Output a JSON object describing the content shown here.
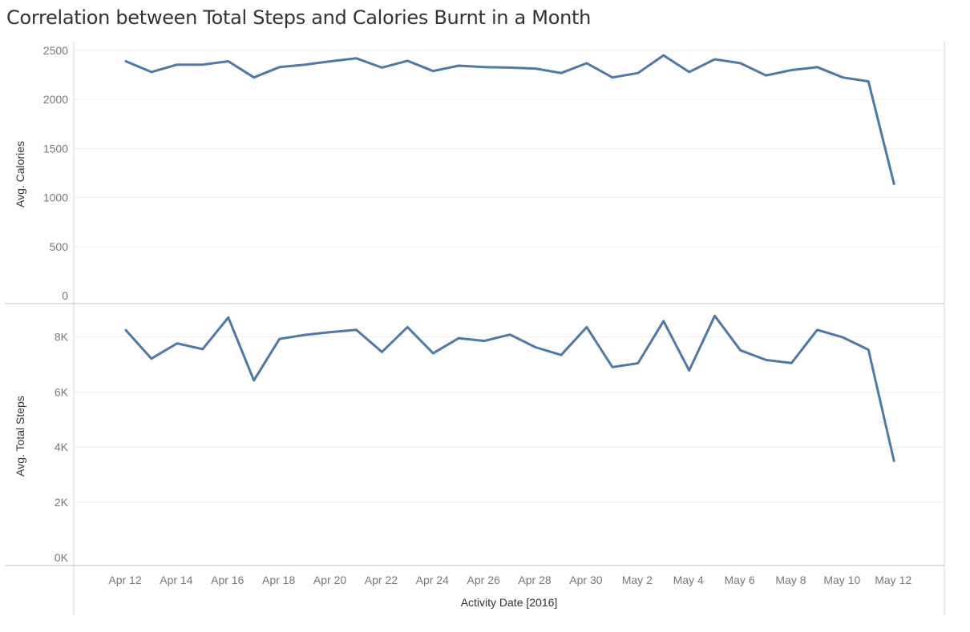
{
  "title": "Correlation between Total Steps and Calories Burnt in a Month",
  "chart_data": {
    "type": "line",
    "xlabel": "Activity Date [2016]",
    "x_tick_labels": [
      "Apr 12",
      "Apr 14",
      "Apr 16",
      "Apr 18",
      "Apr 20",
      "Apr 22",
      "Apr 24",
      "Apr 26",
      "Apr 28",
      "Apr 30",
      "May 2",
      "May 4",
      "May 6",
      "May 8",
      "May 10",
      "May 12"
    ],
    "x": [
      "Apr 12",
      "Apr 13",
      "Apr 14",
      "Apr 15",
      "Apr 16",
      "Apr 17",
      "Apr 18",
      "Apr 19",
      "Apr 20",
      "Apr 21",
      "Apr 22",
      "Apr 23",
      "Apr 24",
      "Apr 25",
      "Apr 26",
      "Apr 27",
      "Apr 28",
      "Apr 29",
      "Apr 30",
      "May 1",
      "May 2",
      "May 3",
      "May 4",
      "May 5",
      "May 6",
      "May 7",
      "May 8",
      "May 9",
      "May 10",
      "May 11",
      "May 12"
    ],
    "line_color": "#4e79a7",
    "grid": true,
    "panels": [
      {
        "ylabel": "Avg. Calories",
        "ylim": [
          0,
          2500
        ],
        "y_ticks": [
          0,
          500,
          1000,
          1500,
          2000,
          2500
        ],
        "y_tick_labels": [
          "0",
          "500",
          "1000",
          "1500",
          "2000",
          "2500"
        ],
        "values": [
          2390,
          2280,
          2355,
          2355,
          2390,
          2225,
          2330,
          2355,
          2390,
          2420,
          2325,
          2395,
          2290,
          2345,
          2330,
          2325,
          2315,
          2270,
          2370,
          2225,
          2270,
          2450,
          2280,
          2410,
          2370,
          2245,
          2300,
          2330,
          2225,
          2185,
          1140
        ]
      },
      {
        "ylabel": "Avg. Total Steps",
        "ylim": [
          0,
          9000
        ],
        "y_ticks": [
          0,
          2000,
          4000,
          6000,
          8000
        ],
        "y_tick_labels": [
          "0K",
          "2K",
          "4K",
          "6K",
          "8K"
        ],
        "values": [
          8240,
          7210,
          7760,
          7550,
          8700,
          6420,
          7920,
          8070,
          8170,
          8250,
          7450,
          8350,
          7400,
          7950,
          7850,
          8080,
          7620,
          7340,
          8350,
          6900,
          7040,
          8570,
          6780,
          8760,
          7510,
          7160,
          7050,
          8250,
          7980,
          7530,
          3500
        ]
      }
    ]
  }
}
